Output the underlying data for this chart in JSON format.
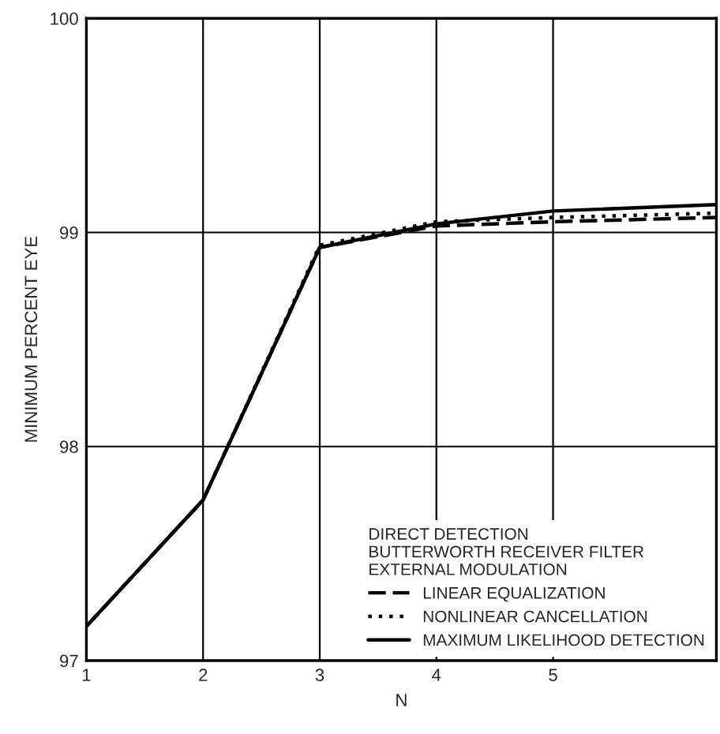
{
  "chart_data": {
    "type": "line",
    "xlabel": "N",
    "ylabel": "MINIMUM PERCENT EYE",
    "legend_title": "DIRECT DETECTION\nBUTTERWORTH RECEIVER FILTER\nEXTERNAL MODULATION",
    "x": [
      1,
      2,
      3,
      4,
      5,
      6.4
    ],
    "series": [
      {
        "name": "LINEAR EQUALIZATION",
        "color": "#000000",
        "line_style": "dashed",
        "values": [
          97.16,
          97.75,
          98.93,
          99.03,
          99.05,
          99.07
        ]
      },
      {
        "name": "NONLINEAR CANCELLATION",
        "color": "#000000",
        "line_style": "dotted",
        "values": [
          97.16,
          97.75,
          98.94,
          99.05,
          99.07,
          99.09
        ]
      },
      {
        "name": "MAXIMUM LIKELIHOOD DETECTION",
        "color": "#000000",
        "line_style": "solid",
        "values": [
          97.16,
          97.75,
          98.93,
          99.04,
          99.1,
          99.13
        ]
      }
    ],
    "xlim": [
      1,
      6.4
    ],
    "xticks": [
      1,
      2,
      3,
      4,
      5
    ],
    "ylim": [
      97,
      100
    ],
    "yticks": [
      97,
      98,
      99,
      100
    ],
    "grid": true,
    "legend": "bottom right",
    "marker": "none"
  }
}
